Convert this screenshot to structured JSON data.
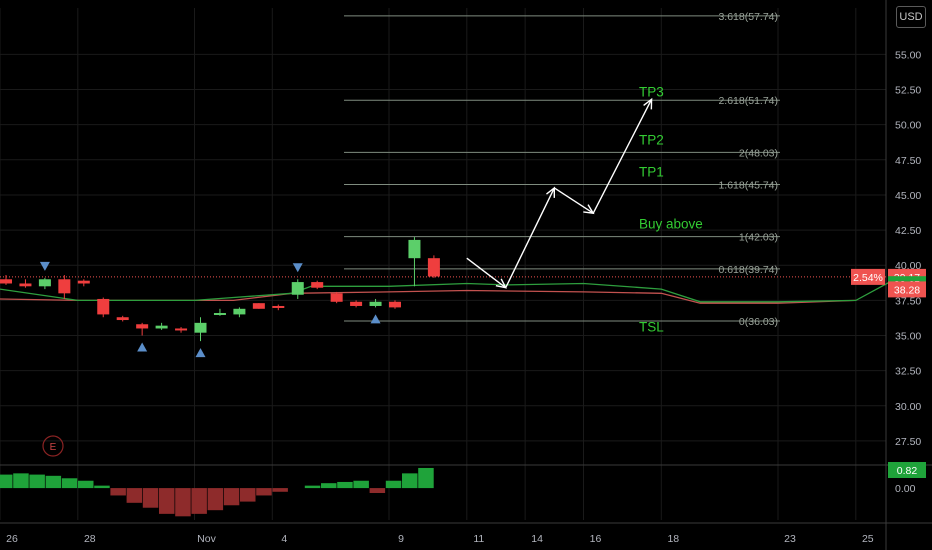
{
  "ui": {
    "currency_label": "USD",
    "earnings_marker": "E"
  },
  "colors": {
    "background": "#000000",
    "grid": "#1a1a1a",
    "axis_text": "#b2b5be",
    "fib_level": "#7f8c7f",
    "fib_label": "#9aa39a",
    "annotation_text": "#33cc33",
    "bull": "#5ccf6a",
    "bear": "#ef3e3e",
    "price_line": "#ef5350",
    "ma_green": "#2e9e3e",
    "ma_red": "#c2524f",
    "arrow": "#ffffff",
    "signal_marker": "#5b8ec9",
    "hist_pos": "#1fa33a",
    "hist_neg": "#8e2b2b"
  },
  "chart_data": {
    "type": "candlestick",
    "price_axis": {
      "ylim": [
        26.0,
        58.3
      ],
      "ticks": [
        "55.00",
        "52.50",
        "50.00",
        "47.50",
        "45.00",
        "42.50",
        "40.00",
        "37.50",
        "35.00",
        "32.50",
        "30.00",
        "27.50"
      ],
      "tick_values": [
        55,
        52.5,
        50,
        47.5,
        45,
        42.5,
        40,
        37.5,
        35,
        32.5,
        30,
        27.5
      ]
    },
    "time_axis": {
      "labels": [
        "26",
        "28",
        "Nov",
        "4",
        "9",
        "11",
        "14",
        "16",
        "18",
        "23",
        "25"
      ],
      "label_index": [
        0,
        4,
        10,
        14,
        20,
        24,
        27,
        30,
        34,
        40,
        44
      ]
    },
    "candles": [
      {
        "i": 0,
        "o": 39.0,
        "h": 39.3,
        "l": 38.6,
        "c": 38.7
      },
      {
        "i": 1,
        "o": 38.7,
        "h": 39.0,
        "l": 38.4,
        "c": 38.5
      },
      {
        "i": 2,
        "o": 38.5,
        "h": 39.1,
        "l": 38.3,
        "c": 39.0
      },
      {
        "i": 3,
        "o": 39.0,
        "h": 39.3,
        "l": 37.6,
        "c": 38.0
      },
      {
        "i": 4,
        "o": 38.9,
        "h": 39.0,
        "l": 38.5,
        "c": 38.7
      },
      {
        "i": 5,
        "o": 37.6,
        "h": 37.7,
        "l": 36.3,
        "c": 36.5
      },
      {
        "i": 6,
        "o": 36.3,
        "h": 36.4,
        "l": 36.0,
        "c": 36.1
      },
      {
        "i": 7,
        "o": 35.8,
        "h": 35.9,
        "l": 35.0,
        "c": 35.5
      },
      {
        "i": 8,
        "o": 35.5,
        "h": 35.9,
        "l": 35.4,
        "c": 35.7
      },
      {
        "i": 9,
        "o": 35.5,
        "h": 35.6,
        "l": 35.2,
        "c": 35.4
      },
      {
        "i": 10,
        "o": 35.2,
        "h": 36.3,
        "l": 34.6,
        "c": 35.9
      },
      {
        "i": 11,
        "o": 36.5,
        "h": 36.9,
        "l": 36.4,
        "c": 36.6
      },
      {
        "i": 12,
        "o": 36.5,
        "h": 37.0,
        "l": 36.3,
        "c": 36.9
      },
      {
        "i": 13,
        "o": 37.3,
        "h": 37.3,
        "l": 36.9,
        "c": 36.9
      },
      {
        "i": 14,
        "o": 37.1,
        "h": 37.2,
        "l": 36.8,
        "c": 37.0
      },
      {
        "i": 15,
        "o": 37.9,
        "h": 39.0,
        "l": 37.6,
        "c": 38.8
      },
      {
        "i": 16,
        "o": 38.8,
        "h": 38.9,
        "l": 38.3,
        "c": 38.4
      },
      {
        "i": 17,
        "o": 38.0,
        "h": 38.1,
        "l": 37.3,
        "c": 37.4
      },
      {
        "i": 18,
        "o": 37.4,
        "h": 37.5,
        "l": 37.0,
        "c": 37.1
      },
      {
        "i": 19,
        "o": 37.1,
        "h": 37.6,
        "l": 37.0,
        "c": 37.4
      },
      {
        "i": 20,
        "o": 37.4,
        "h": 37.5,
        "l": 36.9,
        "c": 37.0
      },
      {
        "i": 21,
        "o": 40.5,
        "h": 42.0,
        "l": 38.5,
        "c": 41.8
      },
      {
        "i": 22,
        "o": 40.5,
        "h": 40.7,
        "l": 39.1,
        "c": 39.2
      }
    ],
    "signals_down_at": [
      2,
      15
    ],
    "signals_up_at": [
      7,
      10,
      19
    ],
    "fib_levels": [
      {
        "ratio": "3.618",
        "label": "3.618(57.74)",
        "value": 57.74
      },
      {
        "ratio": "2.618",
        "label": "2.618(51.74)",
        "value": 51.74
      },
      {
        "ratio": "2",
        "label": "2(48.03)",
        "value": 48.03
      },
      {
        "ratio": "1.618",
        "label": "1.618(45.74)",
        "value": 45.74
      },
      {
        "ratio": "1",
        "label": "1(42.03)",
        "value": 42.03
      },
      {
        "ratio": "0.618",
        "label": "0.618(39.74)",
        "value": 39.74
      },
      {
        "ratio": "0",
        "label": "0(36.03)",
        "value": 36.03
      }
    ],
    "annotations": [
      {
        "text": "TP3",
        "value": 52.0
      },
      {
        "text": "TP2",
        "value": 48.6
      },
      {
        "text": "TP1",
        "value": 46.3
      },
      {
        "text": "Buy above",
        "value": 42.6
      },
      {
        "text": "TSL",
        "value": 35.3
      }
    ],
    "projection_path": [
      {
        "i": 24,
        "v": 40.5
      },
      {
        "i": 26,
        "v": 38.4
      },
      {
        "i": 28.5,
        "v": 45.5
      },
      {
        "i": 30.5,
        "v": 43.7
      },
      {
        "i": 33.5,
        "v": 51.8
      }
    ],
    "ma_green": [
      {
        "i": 0,
        "v": 38.3
      },
      {
        "i": 4,
        "v": 37.5
      },
      {
        "i": 8,
        "v": 37.5
      },
      {
        "i": 10,
        "v": 37.5
      },
      {
        "i": 12,
        "v": 37.7
      },
      {
        "i": 15,
        "v": 38.0
      },
      {
        "i": 16,
        "v": 38.5
      },
      {
        "i": 20,
        "v": 38.5
      },
      {
        "i": 24,
        "v": 38.7
      },
      {
        "i": 26,
        "v": 38.6
      },
      {
        "i": 30,
        "v": 38.7
      },
      {
        "i": 34,
        "v": 38.3
      },
      {
        "i": 36,
        "v": 37.4
      },
      {
        "i": 40,
        "v": 37.4
      },
      {
        "i": 44,
        "v": 37.5
      },
      {
        "i": 46,
        "v": 39.0
      }
    ],
    "ma_red": [
      {
        "i": 0,
        "v": 37.6
      },
      {
        "i": 4,
        "v": 37.5
      },
      {
        "i": 8,
        "v": 37.5
      },
      {
        "i": 10,
        "v": 37.5
      },
      {
        "i": 12,
        "v": 37.5
      },
      {
        "i": 15,
        "v": 38.0
      },
      {
        "i": 20,
        "v": 38.1
      },
      {
        "i": 24,
        "v": 38.2
      },
      {
        "i": 30,
        "v": 38.1
      },
      {
        "i": 34,
        "v": 38.0
      },
      {
        "i": 36,
        "v": 37.3
      },
      {
        "i": 40,
        "v": 37.3
      },
      {
        "i": 44,
        "v": 37.5
      }
    ],
    "current_price": {
      "value": 39.17,
      "label": "39.17",
      "change": "2.54%"
    },
    "axis_badges": [
      {
        "label": "38.65",
        "value": 38.65,
        "color": "#1fa33a"
      },
      {
        "label": "38.28",
        "value": 38.28,
        "color": "#ef5350"
      }
    ],
    "oscillator": {
      "ticks": [
        "0.00"
      ],
      "current_label": "0.82",
      "values": [
        0.55,
        0.6,
        0.55,
        0.5,
        0.4,
        0.3,
        0.1,
        -0.3,
        -0.6,
        -0.8,
        -1.05,
        -1.15,
        -1.05,
        -0.9,
        -0.7,
        -0.55,
        -0.3,
        -0.15,
        0.0,
        0.1,
        0.2,
        0.25,
        0.3,
        -0.2,
        0.3,
        0.6,
        0.82
      ],
      "ylim": [
        -1.3,
        0.9
      ]
    }
  }
}
